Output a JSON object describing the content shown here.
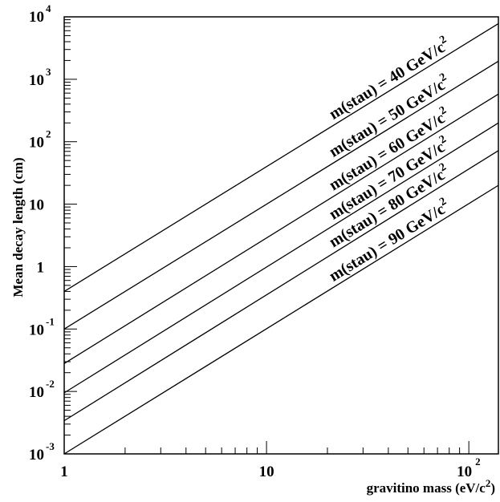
{
  "chart_data": {
    "type": "line",
    "title": "",
    "xlabel": "gravitino mass (eV/c",
    "xlabel_sup": "2",
    "xlabel_close": ")",
    "ylabel": "Mean decay length (cm)",
    "x_scale": "log",
    "y_scale": "log",
    "xlim": [
      1,
      140
    ],
    "ylim": [
      0.001,
      10000
    ],
    "grid": false,
    "x_tick_labels": [
      {
        "value": 1,
        "base": "1",
        "exp": ""
      },
      {
        "value": 10,
        "base": "10",
        "exp": ""
      },
      {
        "value": 100,
        "base": "10",
        "exp": "2"
      }
    ],
    "y_tick_labels": [
      {
        "value": 0.001,
        "base": "10",
        "exp": "-3"
      },
      {
        "value": 0.01,
        "base": "10",
        "exp": "-2"
      },
      {
        "value": 0.1,
        "base": "10",
        "exp": "-1"
      },
      {
        "value": 1,
        "base": "1",
        "exp": ""
      },
      {
        "value": 10,
        "base": "10",
        "exp": ""
      },
      {
        "value": 100,
        "base": "10",
        "exp": "2"
      },
      {
        "value": 1000,
        "base": "10",
        "exp": "3"
      },
      {
        "value": 10000,
        "base": "10",
        "exp": "4"
      }
    ],
    "series": [
      {
        "name": "m(stau) = 40 GeV/c",
        "name_sup": "2",
        "label_at_x": 22,
        "x": [
          1,
          140
        ],
        "y": [
          0.4,
          7800
        ]
      },
      {
        "name": "m(stau) = 50 GeV/c",
        "name_sup": "2",
        "label_at_x": 22,
        "x": [
          1,
          140
        ],
        "y": [
          0.1,
          1950
        ]
      },
      {
        "name": "m(stau) = 60 GeV/c",
        "name_sup": "2",
        "label_at_x": 22,
        "x": [
          1,
          140
        ],
        "y": [
          0.028,
          580
        ]
      },
      {
        "name": "m(stau) = 70 GeV/c",
        "name_sup": "2",
        "label_at_x": 22,
        "x": [
          1,
          140
        ],
        "y": [
          0.0095,
          200
        ]
      },
      {
        "name": "m(stau) = 80 GeV/c",
        "name_sup": "2",
        "label_at_x": 22,
        "x": [
          1,
          140
        ],
        "y": [
          0.0034,
          72
        ]
      },
      {
        "name": "m(stau) = 90 GeV/c",
        "name_sup": "2",
        "label_at_x": 22,
        "x": [
          1,
          140
        ],
        "y": [
          0.001,
          20
        ]
      }
    ]
  }
}
